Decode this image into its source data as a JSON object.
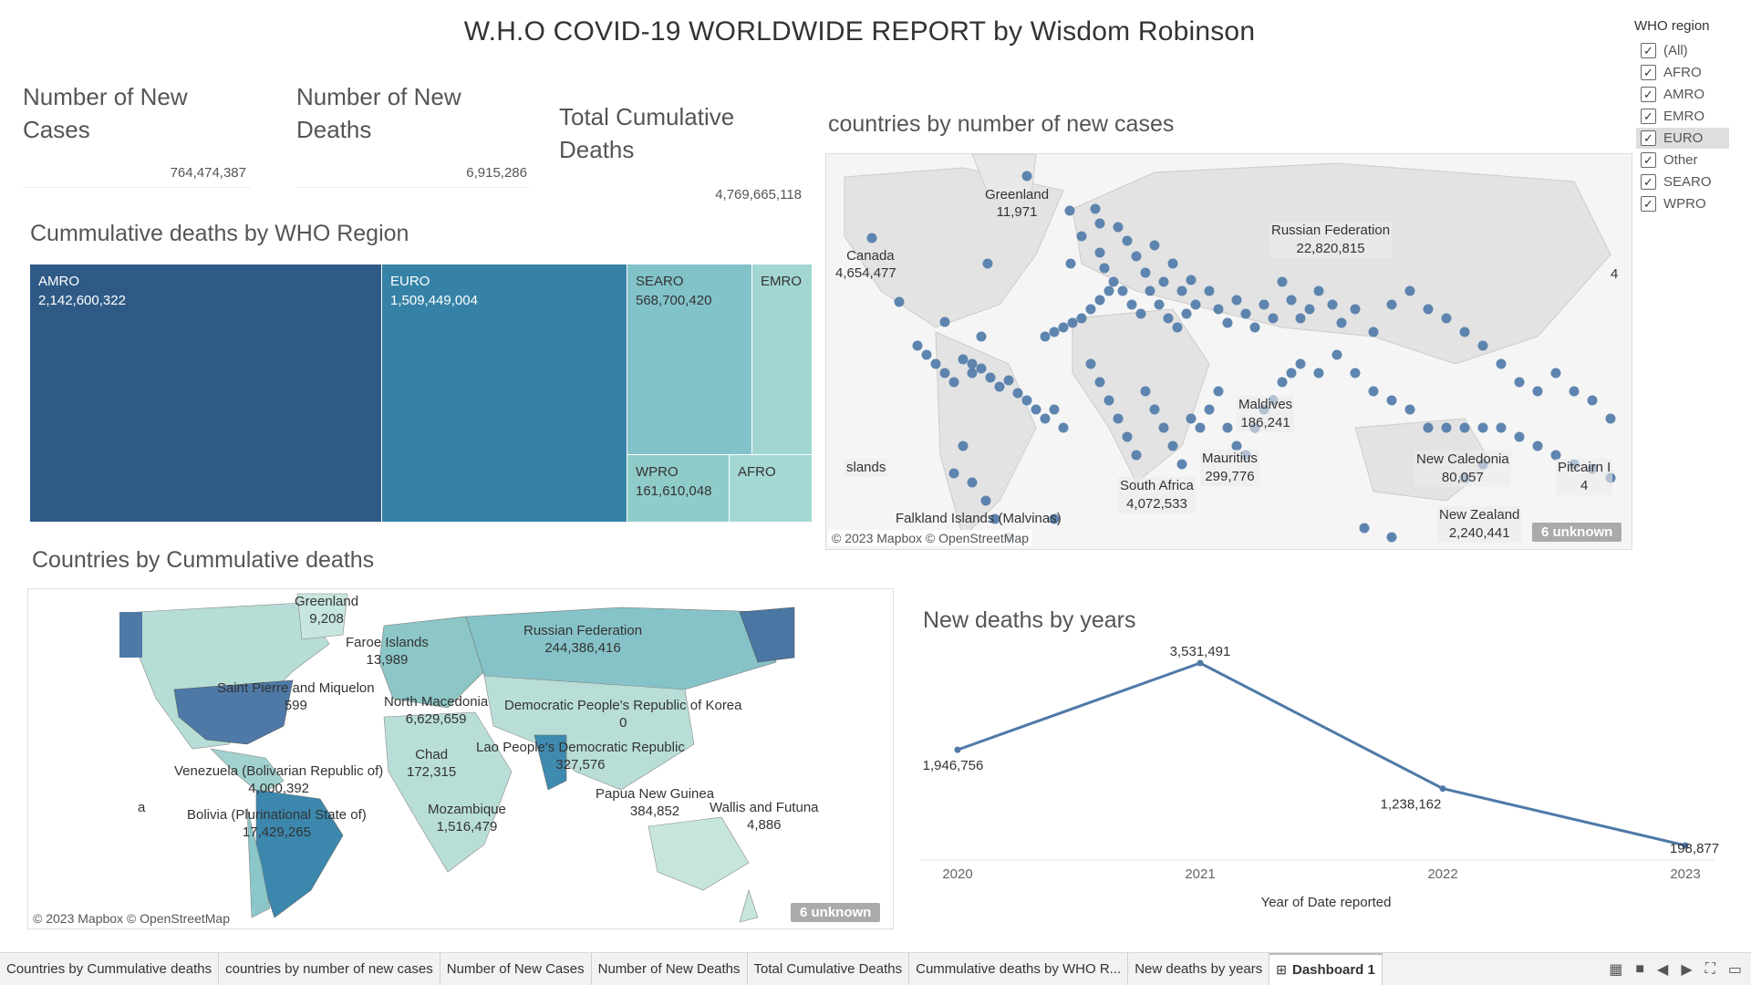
{
  "title": "W.H.O COVID-19 WORLDWIDE REPORT by Wisdom Robinson",
  "kpis": [
    {
      "label": "Number of New Cases",
      "value": "764,474,387"
    },
    {
      "label": "Number of New Deaths",
      "value": "6,915,286"
    },
    {
      "label": "Total Cumulative Deaths",
      "value": "4,769,665,118"
    }
  ],
  "filter": {
    "title": "WHO region",
    "items": [
      {
        "label": "(All)",
        "checked": true
      },
      {
        "label": "AFRO",
        "checked": true
      },
      {
        "label": "AMRO",
        "checked": true
      },
      {
        "label": "EMRO",
        "checked": true
      },
      {
        "label": "EURO",
        "checked": true,
        "highlighted": true
      },
      {
        "label": "Other",
        "checked": true
      },
      {
        "label": "SEARO",
        "checked": true
      },
      {
        "label": "WPRO",
        "checked": true
      }
    ]
  },
  "treemap": {
    "title": "Cummulative deaths by WHO Region",
    "cells": [
      {
        "region": "AMRO",
        "value": "2,142,600,322",
        "color": "#2f5a86"
      },
      {
        "region": "EURO",
        "value": "1,509,449,004",
        "color": "#3582a6"
      },
      {
        "region": "SEARO",
        "value": "568,700,420",
        "color": "#82c3c9"
      },
      {
        "region": "EMRO",
        "value": "",
        "color": "#a2d6d2"
      },
      {
        "region": "WPRO",
        "value": "161,610,048",
        "color": "#8fccc9"
      },
      {
        "region": "AFRO",
        "value": "",
        "color": "#a4d8d4"
      }
    ]
  },
  "map_cases": {
    "title": "countries by number of new cases",
    "labels": [
      {
        "name": "Greenland",
        "value": "11,971"
      },
      {
        "name": "Canada",
        "value": "4,654,477"
      },
      {
        "name": "Russian Federation",
        "value": "22,820,815"
      },
      {
        "name": "Maldives",
        "value": "186,241"
      },
      {
        "name": "Mauritius",
        "value": "299,776"
      },
      {
        "name": "South Africa",
        "value": "4,072,533"
      },
      {
        "name": "New Caledonia",
        "value": "80,057"
      },
      {
        "name": "New Zealand",
        "value": "2,240,441"
      },
      {
        "name": "Pitcairn I",
        "value": "4"
      },
      {
        "name": "slands",
        "value": ""
      },
      {
        "name": "Falkland Islands (Malvinas)",
        "value": ""
      },
      {
        "name": "4",
        "value": ""
      }
    ],
    "attribution": "© 2023 Mapbox © OpenStreetMap",
    "unknown": "6 unknown",
    "dot_color": "#4e79a7"
  },
  "map_deaths": {
    "title": "Countries by Cummulative deaths",
    "labels": [
      {
        "name": "Greenland",
        "value": "9,208"
      },
      {
        "name": "Faroe Islands",
        "value": "13,989"
      },
      {
        "name": "Russian Federation",
        "value": "244,386,416"
      },
      {
        "name": "Saint Pierre and Miquelon",
        "value": "599"
      },
      {
        "name": "North Macedonia",
        "value": "6,629,659"
      },
      {
        "name": "Democratic People's Republic of Korea",
        "value": "0"
      },
      {
        "name": "Lao People's Democratic Republic",
        "value": "327,576"
      },
      {
        "name": "Venezuela (Bolivarian Republic of)",
        "value": "4,000,392"
      },
      {
        "name": "Chad",
        "value": "172,315"
      },
      {
        "name": "Papua New Guinea",
        "value": "384,852"
      },
      {
        "name": "Wallis and Futuna",
        "value": "4,886"
      },
      {
        "name": "Bolivia (Plurinational State of)",
        "value": "17,429,265"
      },
      {
        "name": "Mozambique",
        "value": "1,516,479"
      },
      {
        "name": "a",
        "value": ""
      }
    ],
    "attribution": "© 2023 Mapbox © OpenStreetMap",
    "unknown": "6 unknown"
  },
  "line_chart": {
    "title": "New deaths by years",
    "xlabel": "Year of Date reported",
    "value_labels": [
      "1,946,756",
      "3,531,491",
      "1,238,162",
      "198,877"
    ]
  },
  "chart_data": {
    "type": "line",
    "x": [
      "2020",
      "2021",
      "2022",
      "2023"
    ],
    "series": [
      {
        "values": [
          1946756,
          3531491,
          1238162,
          198877
        ]
      }
    ],
    "xlabel": "Year of Date reported",
    "ylabel": "",
    "ylim": [
      198877,
      3531491
    ],
    "grid": false,
    "color": "#4e79a7"
  },
  "tabs": [
    {
      "label": "Countries by Cummulative deaths",
      "active": false
    },
    {
      "label": "countries by number of new cases",
      "active": false
    },
    {
      "label": "Number of New Cases",
      "active": false
    },
    {
      "label": "Number of New Deaths",
      "active": false
    },
    {
      "label": "Total Cumulative Deaths",
      "active": false
    },
    {
      "label": "Cummulative deaths by WHO R...",
      "active": false
    },
    {
      "label": "New deaths by years",
      "active": false
    },
    {
      "label": "Dashboard 1",
      "active": true
    }
  ]
}
